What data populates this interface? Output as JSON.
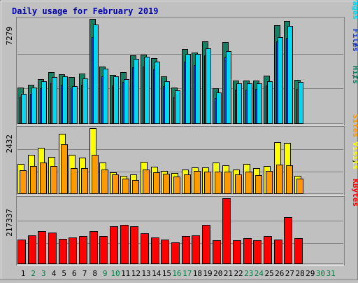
{
  "title": "Daily usage for February 2019",
  "colors": {
    "background": "#c0c0c0",
    "frame_light": "#ffffff",
    "frame_dark": "#808080",
    "title": "#0000aa",
    "gridline": "#808080",
    "hits": "#138063",
    "files": "#1d3ecd",
    "pages": "#00d8f0",
    "visits": "#ffff00",
    "sites": "#ff9900",
    "kbytes": "#ff0000",
    "day_weekday": "#000000",
    "day_weekend": "#007f3f"
  },
  "legends": {
    "top": [
      "Pages",
      "Files",
      "Hits"
    ],
    "middle": [
      "Sites",
      "Visits"
    ],
    "bottom": [
      "KBytes"
    ]
  },
  "chart_data": {
    "type": "bar",
    "title": "Daily usage for February 2019",
    "categories": [
      "1",
      "2",
      "3",
      "4",
      "5",
      "6",
      "7",
      "8",
      "9",
      "10",
      "11",
      "12",
      "13",
      "14",
      "15",
      "16",
      "17",
      "18",
      "19",
      "20",
      "21",
      "22",
      "23",
      "24",
      "25",
      "26",
      "27",
      "28",
      "29",
      "30",
      "31"
    ],
    "weekend_days": [
      "2",
      "3",
      "9",
      "10",
      "16",
      "17",
      "23",
      "24",
      "30",
      "31"
    ],
    "panels": [
      {
        "name": "top",
        "ymax_label": "7279",
        "ymax": 7279,
        "series": [
          {
            "name": "Hits",
            "values": [
              2480,
              2680,
              3100,
              3550,
              3440,
              3240,
              3480,
              7279,
              3970,
              3350,
              3560,
              4730,
              4790,
              4560,
              3260,
              2490,
              5180,
              4950,
              5730,
              2420,
              5670,
              2990,
              2990,
              3000,
              3340,
              6830,
              7110,
              3050,
              0,
              0,
              0
            ]
          },
          {
            "name": "Files",
            "values": [
              1850,
              2050,
              2450,
              2840,
              2710,
              2490,
              2690,
              6020,
              3280,
              2660,
              2860,
              3890,
              3970,
              3800,
              2580,
              1850,
              4290,
              4070,
              4720,
              1770,
              4620,
              2350,
              2350,
              2370,
              2650,
              5720,
              5940,
              2400,
              0,
              0,
              0
            ]
          },
          {
            "name": "Pages",
            "values": [
              2070,
              2480,
              2940,
              3220,
              3260,
              2570,
              3140,
              6910,
              3820,
              3250,
              3100,
              4490,
              4620,
              4280,
              2950,
              2300,
              4860,
              4860,
              5230,
              2160,
              5010,
              2770,
              2770,
              2780,
              2920,
              6010,
              6770,
              2900,
              0,
              0,
              0
            ]
          }
        ]
      },
      {
        "name": "middle",
        "ymax_label": "2432",
        "ymax": 2432,
        "series": [
          {
            "name": "Visits",
            "values": [
              1110,
              1430,
              1710,
              1370,
              2230,
              1430,
              1340,
              2432,
              1160,
              790,
              650,
              710,
              1170,
              1000,
              830,
              770,
              900,
              970,
              970,
              1160,
              1040,
              900,
              1090,
              930,
              1010,
              1910,
              1870,
              650,
              0,
              0,
              0
            ]
          },
          {
            "name": "Sites",
            "values": [
              850,
              1020,
              1140,
              1020,
              1840,
              930,
              930,
              1450,
              890,
              710,
              540,
              490,
              900,
              790,
              720,
              620,
              710,
              840,
              820,
              820,
              810,
              700,
              820,
              690,
              840,
              1070,
              1050,
              540,
              0,
              0,
              0
            ]
          }
        ]
      },
      {
        "name": "bottom",
        "ymax_label": "217337",
        "ymax": 217337,
        "series": [
          {
            "name": "KBytes",
            "values": [
              80400,
              94100,
              107800,
              103400,
              82100,
              85400,
              90900,
              107800,
              91700,
              124200,
              128600,
              123100,
              100100,
              87600,
              78500,
              70900,
              90100,
              92800,
              128100,
              76400,
              217337,
              77500,
              83700,
              76300,
              91600,
              80400,
              155000,
              84600,
              0,
              0,
              0
            ]
          }
        ]
      }
    ]
  }
}
